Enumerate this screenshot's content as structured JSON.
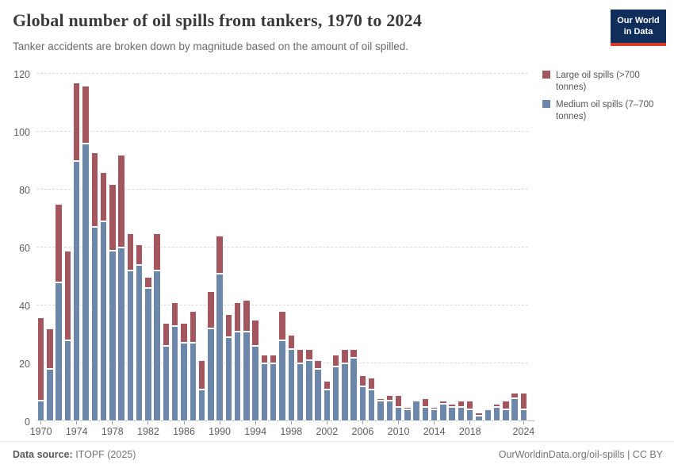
{
  "header": {
    "title": "Global number of oil spills from tankers, 1970 to 2024",
    "subtitle": "Tanker accidents are broken down by magnitude based on the amount of oil spilled."
  },
  "logo": {
    "line1": "Our World",
    "line2": "in Data",
    "bg_color": "#0f2e5c",
    "stripe_color": "#d73c2a"
  },
  "legend": {
    "position": "right",
    "items": [
      {
        "label": "Large oil spills (>700 tonnes)",
        "color": "#a3565e"
      },
      {
        "label": "Medium oil spills (7–700 tonnes)",
        "color": "#6c87a9"
      }
    ]
  },
  "footer": {
    "datasource_label": "Data source:",
    "datasource_value": " ITOPF (2025)",
    "link": "OurWorldinData.org/oil-spills | CC BY"
  },
  "chart_data": {
    "type": "bar",
    "stacked": true,
    "title": "Global number of oil spills from tankers, 1970 to 2024",
    "xlabel": "",
    "ylabel": "",
    "ylim": [
      0,
      120
    ],
    "y_ticks": [
      0,
      20,
      40,
      60,
      80,
      100,
      120
    ],
    "x_tick_years": [
      1970,
      1974,
      1978,
      1982,
      1986,
      1990,
      1994,
      1998,
      2002,
      2006,
      2010,
      2014,
      2018,
      2024
    ],
    "grid": "horizontal-dashed",
    "legend_position": "right",
    "x": [
      1970,
      1971,
      1972,
      1973,
      1974,
      1975,
      1976,
      1977,
      1978,
      1979,
      1980,
      1981,
      1982,
      1983,
      1984,
      1985,
      1986,
      1987,
      1988,
      1989,
      1990,
      1991,
      1992,
      1993,
      1994,
      1995,
      1996,
      1997,
      1998,
      1999,
      2000,
      2001,
      2002,
      2003,
      2004,
      2005,
      2006,
      2007,
      2008,
      2009,
      2010,
      2011,
      2012,
      2013,
      2014,
      2015,
      2016,
      2017,
      2018,
      2019,
      2020,
      2021,
      2022,
      2023,
      2024
    ],
    "series": [
      {
        "name": "Medium oil spills (7–700 tonnes)",
        "color": "#6c87a9",
        "values": [
          7,
          18,
          48,
          28,
          90,
          96,
          67,
          69,
          59,
          60,
          52,
          54,
          46,
          52,
          26,
          33,
          27,
          27,
          11,
          32,
          51,
          29,
          31,
          31,
          26,
          20,
          20,
          28,
          25,
          20,
          21,
          18,
          11,
          19,
          20,
          22,
          12,
          11,
          7,
          7,
          5,
          4,
          7,
          5,
          4,
          6,
          5,
          5,
          4,
          2,
          4,
          5,
          4,
          8,
          4
        ]
      },
      {
        "name": "Large oil spills (>700 tonnes)",
        "color": "#a3565e",
        "values": [
          29,
          14,
          27,
          31,
          27,
          20,
          26,
          17,
          23,
          32,
          13,
          7,
          4,
          13,
          8,
          8,
          7,
          11,
          10,
          13,
          13,
          8,
          10,
          11,
          9,
          3,
          3,
          10,
          5,
          5,
          4,
          3,
          3,
          4,
          5,
          3,
          4,
          4,
          1,
          2,
          4,
          1,
          0,
          3,
          1,
          1,
          1,
          2,
          3,
          1,
          0,
          1,
          3,
          2,
          6
        ]
      }
    ]
  }
}
